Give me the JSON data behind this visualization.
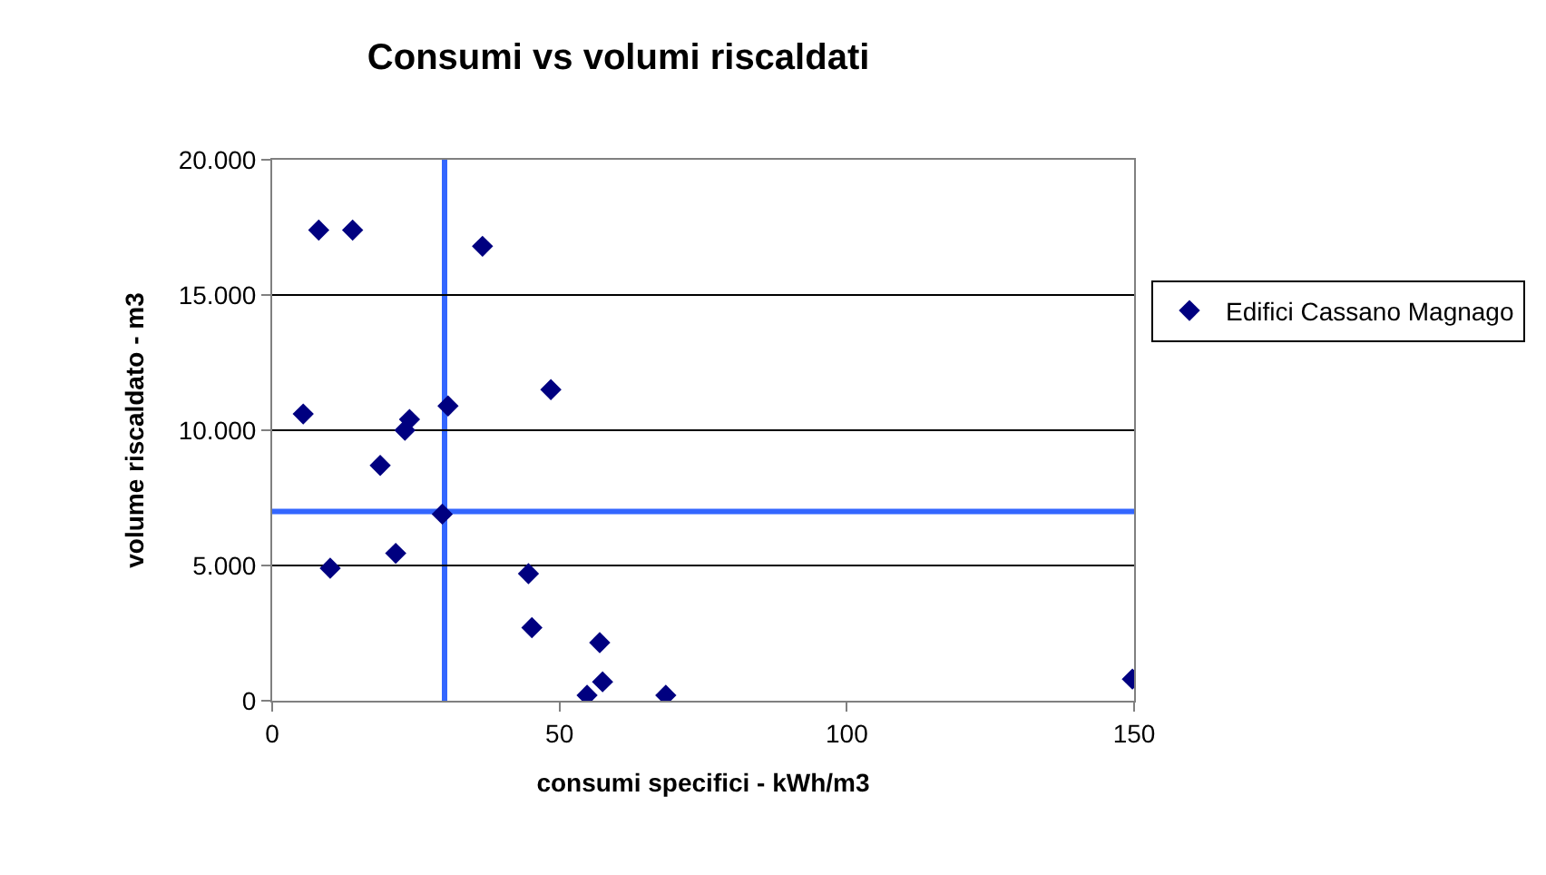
{
  "chart_data": {
    "type": "scatter",
    "title": "Consumi vs volumi riscaldati",
    "xlabel": "consumi specifici - kWh/m3",
    "ylabel": "volume riscaldato - m3",
    "series": [
      {
        "name": "Edifici Cassano Magnago",
        "color": "#000080",
        "x": [
          8.1,
          14.0,
          36.6,
          5.4,
          23.9,
          23.1,
          30.6,
          48.5,
          18.8,
          29.6,
          21.5,
          10.1,
          44.6,
          45.2,
          57.0,
          57.5,
          54.8,
          68.5,
          149.7
        ],
        "values": [
          17400,
          17400,
          16800,
          10600,
          10400,
          10000,
          10900,
          11500,
          8700,
          6900,
          5450,
          4900,
          4700,
          2700,
          2150,
          700,
          200,
          200,
          800
        ]
      }
    ],
    "xlim": [
      0,
      150
    ],
    "xticks": [
      0,
      50,
      100,
      150
    ],
    "ylim": [
      0,
      20000
    ],
    "yticks": [
      {
        "value": 0,
        "label": "0"
      },
      {
        "value": 5000,
        "label": "5.000"
      },
      {
        "value": 10000,
        "label": "10.000"
      },
      {
        "value": 15000,
        "label": "15.000"
      },
      {
        "value": 20000,
        "label": "20.000"
      }
    ],
    "ref_lines": [
      {
        "axis": "x",
        "value": 30,
        "color": "#3366ff"
      },
      {
        "axis": "y",
        "value": 7000,
        "color": "#3366ff"
      }
    ],
    "grid": "y",
    "legend": "right",
    "marker": "diamond"
  }
}
